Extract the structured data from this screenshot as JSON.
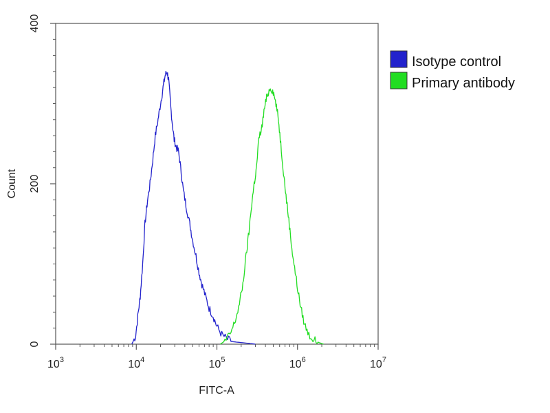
{
  "chart_data": {
    "type": "line",
    "title": "",
    "xlabel": "FITC-A",
    "ylabel": "Count",
    "xscale": "log",
    "xlim": [
      1000,
      10000000
    ],
    "ylim": [
      0,
      400
    ],
    "x_ticks": [
      {
        "base": "10",
        "exp": "3",
        "value": 1000
      },
      {
        "base": "10",
        "exp": "4",
        "value": 10000
      },
      {
        "base": "10",
        "exp": "5",
        "value": 100000
      },
      {
        "base": "10",
        "exp": "6",
        "value": 1000000
      },
      {
        "base": "10",
        "exp": "7",
        "value": 10000000
      }
    ],
    "y_ticks": [
      {
        "label": "0",
        "value": 0
      },
      {
        "label": "200",
        "value": 200
      },
      {
        "label": "400",
        "value": 400
      }
    ],
    "grid": false,
    "legend_position": "top-right-outside",
    "series": [
      {
        "name": "Isotype control",
        "color": "#2222cc",
        "points": [
          [
            8800,
            0
          ],
          [
            9800,
            10
          ],
          [
            10600,
            40
          ],
          [
            11200,
            60
          ],
          [
            12000,
            100
          ],
          [
            12800,
            150
          ],
          [
            13800,
            180
          ],
          [
            14800,
            200
          ],
          [
            16000,
            230
          ],
          [
            17200,
            260
          ],
          [
            18600,
            280
          ],
          [
            20000,
            300
          ],
          [
            21500,
            320
          ],
          [
            22800,
            335
          ],
          [
            24000,
            340
          ],
          [
            25200,
            330
          ],
          [
            26500,
            300
          ],
          [
            28000,
            275
          ],
          [
            29500,
            255
          ],
          [
            31500,
            245
          ],
          [
            33500,
            240
          ],
          [
            36000,
            215
          ],
          [
            38500,
            190
          ],
          [
            42000,
            170
          ],
          [
            46000,
            150
          ],
          [
            50000,
            130
          ],
          [
            55000,
            110
          ],
          [
            60000,
            90
          ],
          [
            65000,
            75
          ],
          [
            72000,
            60
          ],
          [
            80000,
            45
          ],
          [
            90000,
            35
          ],
          [
            100000,
            22
          ],
          [
            115000,
            12
          ],
          [
            135000,
            6
          ],
          [
            160000,
            3
          ],
          [
            200000,
            2
          ],
          [
            250000,
            1
          ],
          [
            300000,
            0
          ]
        ]
      },
      {
        "name": "Primary antibody",
        "color": "#22dd22",
        "points": [
          [
            110000,
            0
          ],
          [
            130000,
            5
          ],
          [
            150000,
            15
          ],
          [
            170000,
            30
          ],
          [
            190000,
            50
          ],
          [
            210000,
            75
          ],
          [
            230000,
            110
          ],
          [
            250000,
            140
          ],
          [
            270000,
            175
          ],
          [
            290000,
            200
          ],
          [
            310000,
            220
          ],
          [
            330000,
            255
          ],
          [
            360000,
            270
          ],
          [
            390000,
            295
          ],
          [
            420000,
            310
          ],
          [
            460000,
            320
          ],
          [
            500000,
            315
          ],
          [
            540000,
            300
          ],
          [
            580000,
            280
          ],
          [
            620000,
            250
          ],
          [
            670000,
            215
          ],
          [
            720000,
            185
          ],
          [
            780000,
            155
          ],
          [
            850000,
            120
          ],
          [
            920000,
            95
          ],
          [
            1000000,
            70
          ],
          [
            1100000,
            45
          ],
          [
            1220000,
            25
          ],
          [
            1380000,
            12
          ],
          [
            1600000,
            5
          ],
          [
            1850000,
            2
          ],
          [
            2100000,
            0
          ]
        ]
      }
    ]
  }
}
